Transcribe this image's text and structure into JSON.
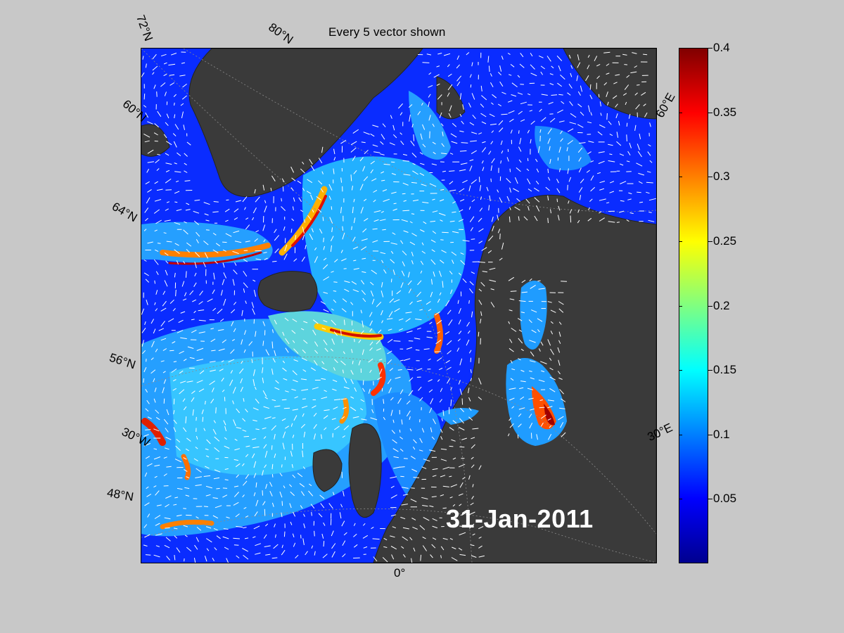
{
  "title": "Every 5 vector shown",
  "date_stamp": "31-Jan-2011",
  "map_labels": {
    "lat72": "72°N",
    "lat60": "60°N",
    "lat64": "64°N",
    "lat56": "56°N",
    "lat48": "48°N",
    "lon80": "80°N",
    "lonw30": "30°W",
    "lon0": "0°",
    "lone30": "30°E",
    "lone60": "60°E"
  },
  "colorbar": {
    "ticks": [
      "0.4",
      "0.35",
      "0.3",
      "0.25",
      "0.2",
      "0.15",
      "0.1",
      "0.05"
    ],
    "tick_values": [
      0.4,
      0.35,
      0.3,
      0.25,
      0.2,
      0.15,
      0.1,
      0.05
    ],
    "range": [
      0,
      0.4
    ],
    "colormap": [
      "#00008f",
      "#0000ff",
      "#0080ff",
      "#00ffff",
      "#80ff80",
      "#ffff00",
      "#ff8000",
      "#ff0000",
      "#800000"
    ]
  },
  "colors": {
    "land": "#3a3a3a",
    "ocean_base": "#0a2cff",
    "vectors": "#ffffff",
    "background": "#c8c8c8"
  }
}
